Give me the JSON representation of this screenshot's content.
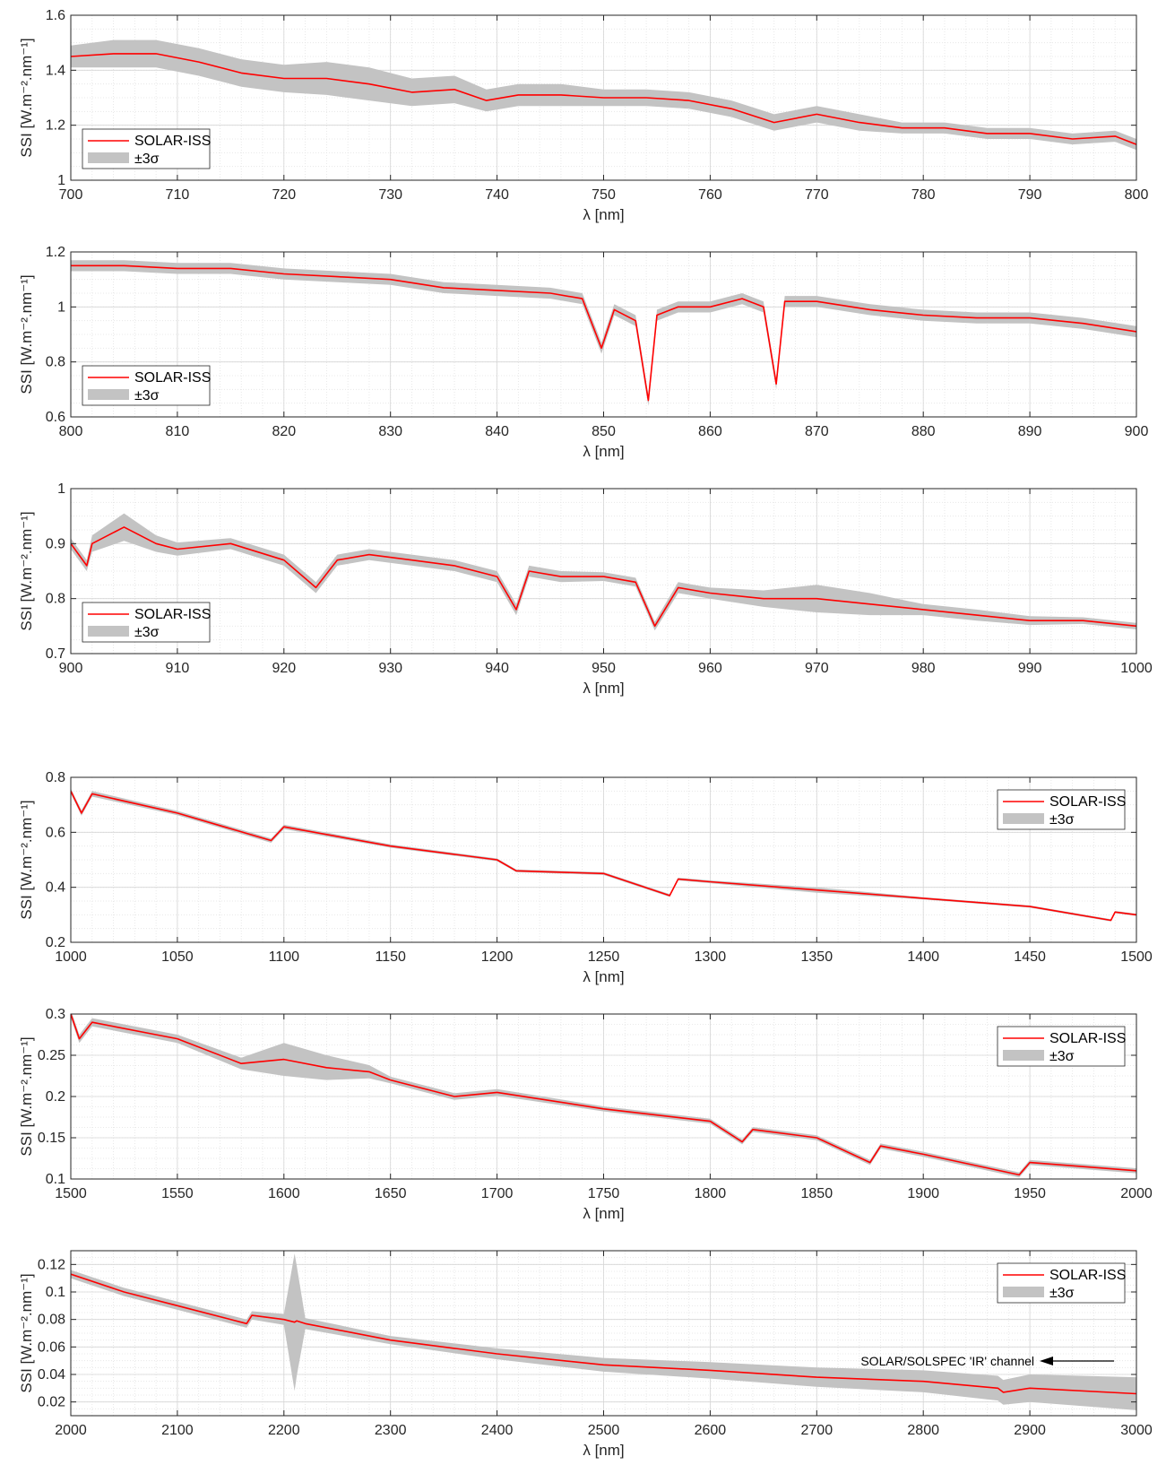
{
  "figure": {
    "colors": {
      "line": "#ff0000",
      "band": "#c3c3c3",
      "axis": "#262626",
      "grid": "#e3e3e3"
    }
  },
  "chart_data": [
    {
      "type": "area",
      "xlabel": "λ [nm]",
      "ylabel": "SSI [W.m⁻².nm⁻¹]",
      "xlim": [
        700,
        800
      ],
      "ylim": [
        1,
        1.6
      ],
      "xticks": [
        "700",
        "710",
        "720",
        "730",
        "740",
        "750",
        "760",
        "770",
        "780",
        "790",
        "800"
      ],
      "yticks": [
        "1",
        "1.2",
        "1.4",
        "1.6"
      ],
      "grid": true,
      "legend_position": "bottom-left",
      "legend": [
        "SOLAR-ISS",
        "±3σ"
      ],
      "series": [
        {
          "name": "SOLAR-ISS",
          "x": [
            700,
            704,
            708,
            712,
            716,
            720,
            724,
            728,
            732,
            736,
            739,
            742,
            746,
            750,
            754,
            758,
            762,
            766,
            770,
            774,
            778,
            782,
            786,
            790,
            794,
            798,
            800
          ],
          "values": [
            1.45,
            1.46,
            1.46,
            1.43,
            1.39,
            1.37,
            1.37,
            1.35,
            1.32,
            1.33,
            1.29,
            1.31,
            1.31,
            1.3,
            1.3,
            1.29,
            1.26,
            1.21,
            1.24,
            1.21,
            1.19,
            1.19,
            1.17,
            1.17,
            1.15,
            1.16,
            1.13
          ],
          "uncertainty_3sigma": [
            0.04,
            0.05,
            0.05,
            0.05,
            0.05,
            0.05,
            0.06,
            0.06,
            0.05,
            0.05,
            0.04,
            0.04,
            0.04,
            0.03,
            0.03,
            0.03,
            0.03,
            0.03,
            0.03,
            0.03,
            0.02,
            0.02,
            0.02,
            0.02,
            0.02,
            0.02,
            0.02
          ]
        }
      ]
    },
    {
      "type": "area",
      "xlabel": "λ [nm]",
      "ylabel": "SSI [W.m⁻².nm⁻¹]",
      "xlim": [
        800,
        900
      ],
      "ylim": [
        0.6,
        1.2
      ],
      "xticks": [
        "800",
        "810",
        "820",
        "830",
        "840",
        "850",
        "860",
        "870",
        "880",
        "890",
        "900"
      ],
      "yticks": [
        "0.6",
        "0.8",
        "1",
        "1.2"
      ],
      "grid": true,
      "legend_position": "bottom-left",
      "legend": [
        "SOLAR-ISS",
        "±3σ"
      ],
      "series": [
        {
          "name": "SOLAR-ISS",
          "x": [
            800,
            805,
            810,
            815,
            820,
            825,
            830,
            835,
            840,
            845,
            848,
            849.8,
            851,
            853,
            854.2,
            855,
            857,
            860,
            863,
            865,
            866.2,
            867,
            870,
            875,
            880,
            885,
            890,
            895,
            900
          ],
          "values": [
            1.15,
            1.15,
            1.14,
            1.14,
            1.12,
            1.11,
            1.1,
            1.07,
            1.06,
            1.05,
            1.03,
            0.85,
            0.99,
            0.95,
            0.66,
            0.97,
            1.0,
            1.0,
            1.03,
            1.0,
            0.72,
            1.02,
            1.02,
            0.99,
            0.97,
            0.96,
            0.96,
            0.94,
            0.91
          ],
          "uncertainty_3sigma": [
            0.02,
            0.02,
            0.02,
            0.02,
            0.02,
            0.02,
            0.02,
            0.02,
            0.02,
            0.02,
            0.02,
            0.02,
            0.02,
            0.02,
            0.02,
            0.02,
            0.02,
            0.02,
            0.02,
            0.02,
            0.02,
            0.02,
            0.02,
            0.02,
            0.02,
            0.02,
            0.02,
            0.02,
            0.02
          ]
        }
      ]
    },
    {
      "type": "area",
      "xlabel": "λ [nm]",
      "ylabel": "SSI [W.m⁻².nm⁻¹]",
      "xlim": [
        900,
        1000
      ],
      "ylim": [
        0.7,
        1
      ],
      "xticks": [
        "900",
        "910",
        "920",
        "930",
        "940",
        "950",
        "960",
        "970",
        "980",
        "990",
        "1000"
      ],
      "yticks": [
        "0.7",
        "0.8",
        "0.9",
        "1"
      ],
      "grid": true,
      "legend_position": "bottom-left",
      "legend": [
        "SOLAR-ISS",
        "±3σ"
      ],
      "series": [
        {
          "name": "SOLAR-ISS",
          "x": [
            900,
            901.5,
            902,
            905,
            908,
            910,
            915,
            920,
            923,
            925,
            928,
            932,
            936,
            940,
            941.8,
            943,
            946,
            950,
            953,
            954.8,
            957,
            960,
            965,
            970,
            975,
            980,
            985,
            990,
            995,
            1000
          ],
          "values": [
            0.9,
            0.86,
            0.9,
            0.93,
            0.9,
            0.89,
            0.9,
            0.87,
            0.82,
            0.87,
            0.88,
            0.87,
            0.86,
            0.84,
            0.78,
            0.85,
            0.84,
            0.84,
            0.83,
            0.75,
            0.82,
            0.81,
            0.8,
            0.8,
            0.79,
            0.78,
            0.77,
            0.76,
            0.76,
            0.75
          ],
          "uncertainty_3sigma": [
            0.01,
            0.01,
            0.015,
            0.025,
            0.015,
            0.012,
            0.01,
            0.01,
            0.01,
            0.01,
            0.01,
            0.01,
            0.01,
            0.01,
            0.01,
            0.01,
            0.01,
            0.008,
            0.008,
            0.008,
            0.01,
            0.01,
            0.015,
            0.025,
            0.02,
            0.01,
            0.01,
            0.008,
            0.006,
            0.006
          ]
        }
      ]
    },
    {
      "type": "area",
      "xlabel": "λ [nm]",
      "ylabel": "SSI [W.m⁻².nm⁻¹]",
      "xlim": [
        1000,
        1500
      ],
      "ylim": [
        0.2,
        0.8
      ],
      "xticks": [
        "1000",
        "1050",
        "1100",
        "1150",
        "1200",
        "1250",
        "1300",
        "1350",
        "1400",
        "1450",
        "1500"
      ],
      "yticks": [
        "0.2",
        "0.4",
        "0.6",
        "0.8"
      ],
      "grid": true,
      "legend_position": "top-right",
      "legend": [
        "SOLAR-ISS",
        "±3σ"
      ],
      "series": [
        {
          "name": "SOLAR-ISS",
          "x": [
            1000,
            1005,
            1010,
            1050,
            1094,
            1100,
            1150,
            1200,
            1209,
            1250,
            1281,
            1285,
            1300,
            1350,
            1400,
            1450,
            1488,
            1490,
            1500
          ],
          "values": [
            0.75,
            0.67,
            0.74,
            0.67,
            0.57,
            0.62,
            0.55,
            0.5,
            0.46,
            0.45,
            0.37,
            0.43,
            0.42,
            0.39,
            0.36,
            0.33,
            0.28,
            0.31,
            0.3
          ],
          "uncertainty_3sigma": [
            0.01,
            0.01,
            0.01,
            0.008,
            0.008,
            0.008,
            0.006,
            0.005,
            0.005,
            0.005,
            0.005,
            0.005,
            0.005,
            0.01,
            0.004,
            0.004,
            0.004,
            0.004,
            0.004
          ]
        }
      ]
    },
    {
      "type": "area",
      "xlabel": "λ [nm]",
      "ylabel": "SSI [W.m⁻².nm⁻¹]",
      "xlim": [
        1500,
        2000
      ],
      "ylim": [
        0.1,
        0.3
      ],
      "xticks": [
        "1500",
        "1550",
        "1600",
        "1650",
        "1700",
        "1750",
        "1800",
        "1850",
        "1900",
        "1950",
        "2000"
      ],
      "yticks": [
        "0.1",
        "0.15",
        "0.2",
        "0.25",
        "0.3"
      ],
      "grid": true,
      "legend_position": "top-right",
      "legend": [
        "SOLAR-ISS",
        "±3σ"
      ],
      "series": [
        {
          "name": "SOLAR-ISS",
          "x": [
            1500,
            1504,
            1510,
            1550,
            1580,
            1600,
            1620,
            1640,
            1650,
            1680,
            1700,
            1750,
            1800,
            1815,
            1820,
            1850,
            1875,
            1880,
            1900,
            1945,
            1950,
            2000
          ],
          "values": [
            0.3,
            0.27,
            0.29,
            0.27,
            0.24,
            0.245,
            0.235,
            0.23,
            0.22,
            0.2,
            0.205,
            0.185,
            0.17,
            0.145,
            0.16,
            0.15,
            0.12,
            0.14,
            0.13,
            0.105,
            0.12,
            0.11
          ],
          "uncertainty_3sigma": [
            0.005,
            0.005,
            0.005,
            0.005,
            0.007,
            0.02,
            0.015,
            0.008,
            0.004,
            0.004,
            0.004,
            0.003,
            0.003,
            0.003,
            0.003,
            0.003,
            0.003,
            0.003,
            0.003,
            0.003,
            0.003,
            0.003
          ]
        }
      ]
    },
    {
      "type": "area",
      "xlabel": "λ [nm]",
      "ylabel": "SSI [W.m⁻².nm⁻¹]",
      "xlim": [
        2000,
        3000
      ],
      "ylim": [
        0.01,
        0.13
      ],
      "xticks": [
        "2000",
        "2100",
        "2200",
        "2300",
        "2400",
        "2500",
        "2600",
        "2700",
        "2800",
        "2900",
        "3000"
      ],
      "yticks": [
        "0.02",
        "0.04",
        "0.06",
        "0.08",
        "0.1",
        "0.12"
      ],
      "grid": true,
      "legend_position": "top-right",
      "legend": [
        "SOLAR-ISS",
        "±3σ"
      ],
      "annotation": "SOLAR/SOLSPEC 'IR' channel",
      "series": [
        {
          "name": "SOLAR-ISS",
          "x": [
            2000,
            2050,
            2100,
            2165,
            2170,
            2200,
            2210,
            2212,
            2220,
            2300,
            2400,
            2500,
            2600,
            2700,
            2800,
            2870,
            2875,
            2900,
            3000
          ],
          "values": [
            0.113,
            0.1,
            0.09,
            0.077,
            0.083,
            0.08,
            0.078,
            0.079,
            0.077,
            0.065,
            0.055,
            0.047,
            0.043,
            0.038,
            0.035,
            0.03,
            0.027,
            0.03,
            0.026
          ],
          "uncertainty_3sigma": [
            0.003,
            0.003,
            0.003,
            0.003,
            0.003,
            0.004,
            0.05,
            0.04,
            0.004,
            0.003,
            0.004,
            0.005,
            0.006,
            0.007,
            0.008,
            0.009,
            0.009,
            0.01,
            0.012
          ]
        }
      ]
    }
  ]
}
